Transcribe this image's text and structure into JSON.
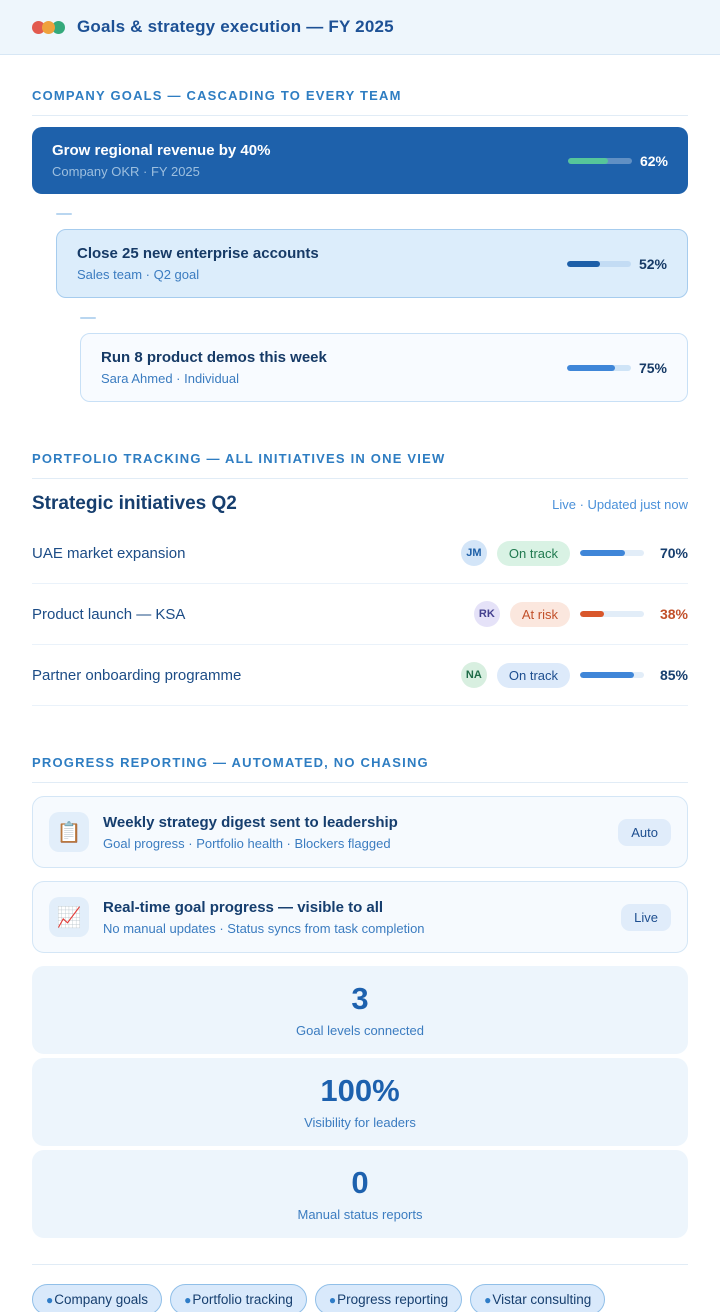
{
  "header": {
    "title": "Goals & strategy execution — FY 2025"
  },
  "sections": {
    "company_goals": {
      "label": "COMPANY GOALS — CASCADING TO EVERY TEAM",
      "goals": [
        {
          "title": "Grow regional revenue by 40%",
          "meta": "Company OKR · FY 2025",
          "percent": 62,
          "percent_label": "62%"
        },
        {
          "title": "Close 25 new enterprise accounts",
          "meta": "Sales team · Q2 goal",
          "percent": 52,
          "percent_label": "52%"
        },
        {
          "title": "Run 8 product demos this week",
          "meta": "Sara Ahmed · Individual",
          "percent": 75,
          "percent_label": "75%"
        }
      ]
    },
    "portfolio": {
      "label": "PORTFOLIO TRACKING — ALL INITIATIVES IN ONE VIEW",
      "heading": "Strategic initiatives Q2",
      "status_note": "Live · Updated just now",
      "rows": [
        {
          "name": "UAE market expansion",
          "avatar": "JM",
          "status": "On track",
          "percent": 70,
          "percent_label": "70%"
        },
        {
          "name": "Product launch — KSA",
          "avatar": "RK",
          "status": "At risk",
          "percent": 38,
          "percent_label": "38%"
        },
        {
          "name": "Partner onboarding programme",
          "avatar": "NA",
          "status": "On track",
          "percent": 85,
          "percent_label": "85%"
        }
      ]
    },
    "progress_reporting": {
      "label": "PROGRESS REPORTING — AUTOMATED, NO CHASING",
      "features": [
        {
          "icon": "clipboard-icon",
          "glyph": "📋",
          "title": "Weekly strategy digest sent to leadership",
          "meta": "Goal progress · Portfolio health · Blockers flagged",
          "badge": "Auto"
        },
        {
          "icon": "chart-increasing-icon",
          "glyph": "📈",
          "title": "Real-time goal progress — visible to all",
          "meta": "No manual updates · Status syncs from task completion",
          "badge": "Live"
        }
      ],
      "stats": [
        {
          "value": "3",
          "label": "Goal levels connected"
        },
        {
          "value": "100%",
          "label": "Visibility for leaders"
        },
        {
          "value": "0",
          "label": "Manual status reports"
        }
      ]
    }
  },
  "footer": {
    "tags": [
      {
        "label": "Company goals"
      },
      {
        "label": "Portfolio tracking"
      },
      {
        "label": "Progress reporting"
      },
      {
        "label": "Vistar consulting"
      }
    ]
  },
  "colors": {
    "accent_blue": "#2e7dc2",
    "header_bg": "#eef6fc",
    "goal_card_navy": "#1e61ab",
    "progress_green": "#56c69a",
    "progress_blue": "#3f86d8",
    "at_risk_orange": "#d9572b",
    "on_track_green_text": "#217a50",
    "at_risk_text": "#c2502a",
    "stat_number_blue": "#1d61ae",
    "dot_red": "#e25a4e",
    "dot_orange": "#efa13c",
    "dot_green": "#34a97b"
  }
}
